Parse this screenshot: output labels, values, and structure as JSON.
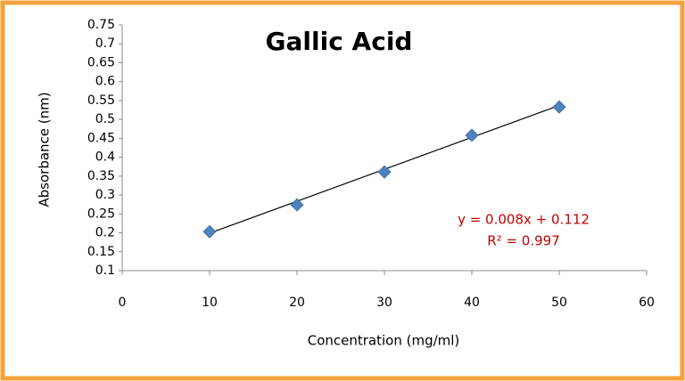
{
  "chart_data": {
    "type": "scatter",
    "title": "Gallic Acid",
    "x_label": "Concentration (mg/ml)",
    "y_label": "Absorbance (nm)",
    "x": [
      10,
      20,
      30,
      40,
      50
    ],
    "values": [
      0.203,
      0.274,
      0.361,
      0.458,
      0.533
    ],
    "color": "#4f81bd",
    "trendline": {
      "x": [
        10,
        50
      ],
      "values": [
        0.199,
        0.537
      ],
      "color": "#000000"
    },
    "equation": "y = 0.008x + 0.112",
    "r_squared": "R² = 0.997",
    "annotation_color": "#c00000",
    "xlim": [
      0,
      60
    ],
    "xticks": [
      0,
      10,
      20,
      30,
      40,
      50,
      60
    ],
    "ylim": [
      0.1,
      0.75
    ],
    "yticks": [
      0.1,
      0.15,
      0.2,
      0.25,
      0.3,
      0.35,
      0.4,
      0.45,
      0.5,
      0.55,
      0.6,
      0.65,
      0.7,
      0.75
    ],
    "grid": false
  }
}
